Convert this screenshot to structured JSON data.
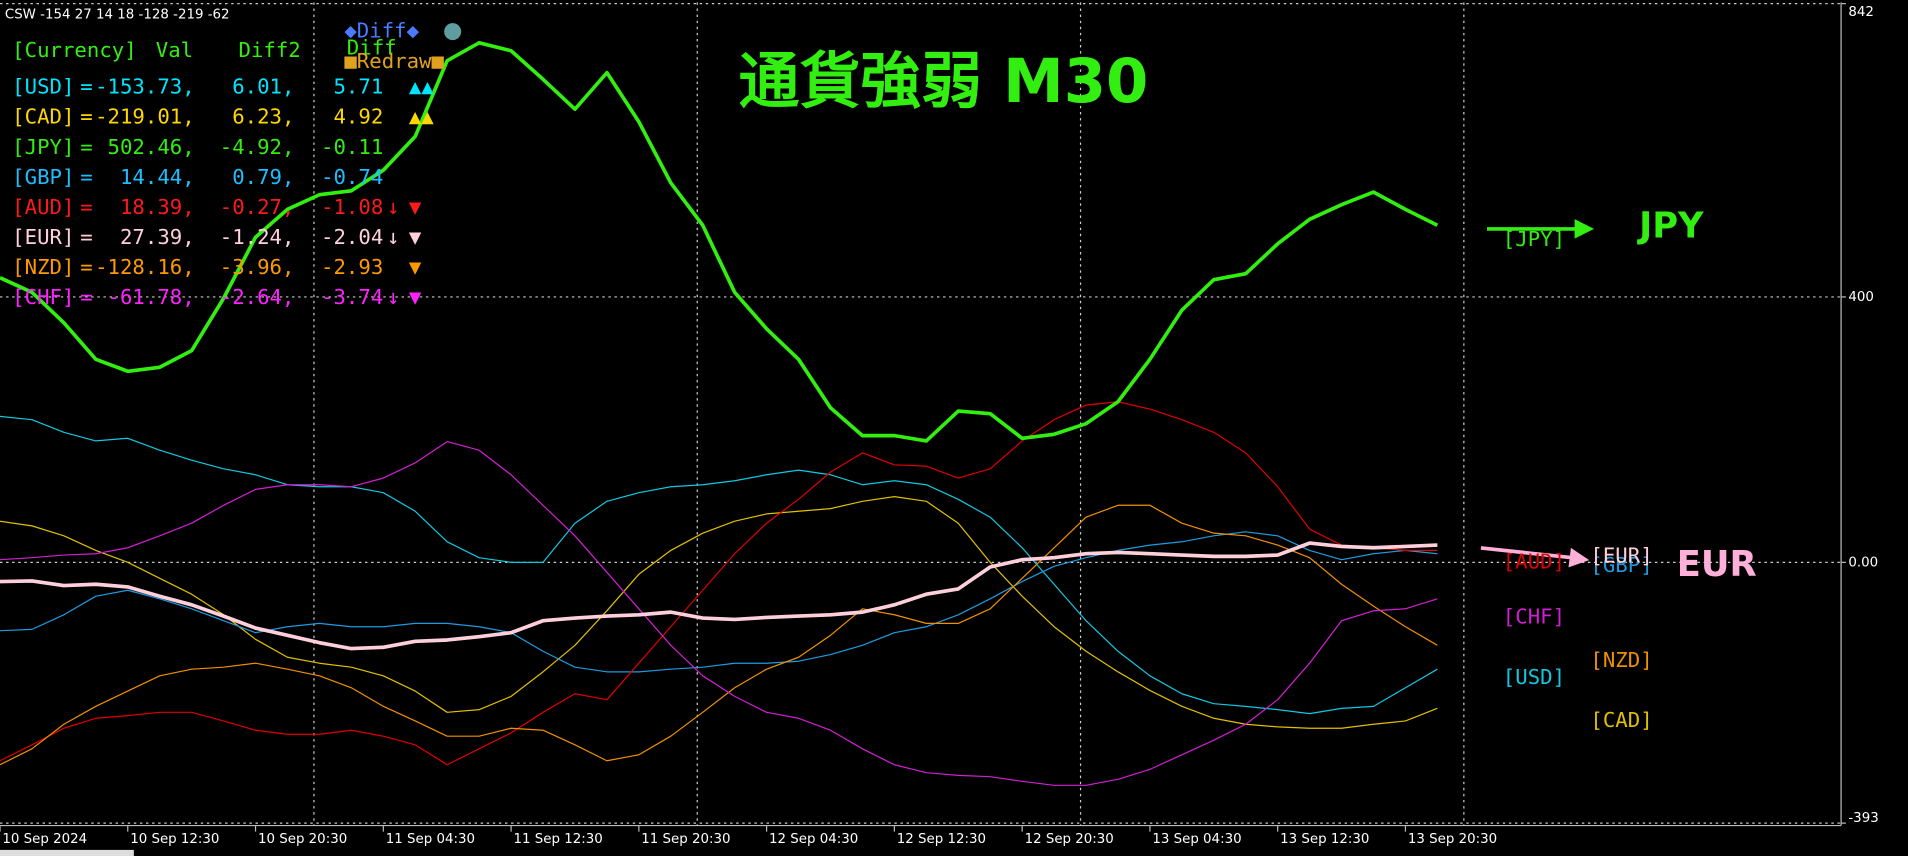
{
  "header": "CSW -154 27 14 18 -128 -219 -62",
  "buttons": [
    {
      "text": "◆Diff◆",
      "color": "#4a7bff"
    },
    {
      "text": "■Redraw■",
      "color": "#e0a020"
    }
  ],
  "panel": {
    "columns": [
      {
        "text": "[Currency]",
        "color": "#33ee11"
      },
      {
        "text": "Val",
        "color": "#33ee11"
      },
      {
        "text": "Diff2",
        "color": "#33ee11"
      },
      {
        "text": "Diff",
        "color": "#33ee11"
      }
    ],
    "rows": [
      {
        "currency": "[USD]",
        "eq": "=",
        "val": "-153.73,",
        "diff2": "6.01,",
        "diff": "5.71",
        "marks": "▲▲",
        "color": "#00e5ff"
      },
      {
        "currency": "[CAD]",
        "eq": "=",
        "val": "-219.01,",
        "diff2": "6.23,",
        "diff": "4.92",
        "marks": "▲▲",
        "color": "#ffd700"
      },
      {
        "currency": "[JPY]",
        "eq": "=",
        "val": "502.46,",
        "diff2": "-4.92,",
        "diff": "-0.11",
        "color": "#33ee11"
      },
      {
        "currency": "[GBP]",
        "eq": "=",
        "val": "14.44,",
        "diff2": "0.79,",
        "diff": "-0.74",
        "color": "#1ebfff"
      },
      {
        "currency": "[AUD]",
        "eq": "=",
        "val": "18.39,",
        "diff2": "-0.27,",
        "diff": "-1.08",
        "arrow": "↓",
        "marks": "▼",
        "color": "#ff1a1a"
      },
      {
        "currency": "[EUR]",
        "eq": "=",
        "val": "27.39,",
        "diff2": "-1.24,",
        "diff": "-2.04",
        "arrow": "↓",
        "marks": "▼",
        "color": "#ffd0dc"
      },
      {
        "currency": "[NZD]",
        "eq": "=",
        "val": "-128.16,",
        "diff2": "-3.96,",
        "diff": "-2.93",
        "marks": "▼",
        "color": "#ff9900"
      },
      {
        "currency": "[CHF]",
        "eq": "=",
        "val": "-61.78,",
        "diff2": "-2.64,",
        "diff": "-3.74",
        "arrow": "↓",
        "marks": "▼",
        "color": "#ff22ff"
      }
    ]
  },
  "chart_data": {
    "type": "line",
    "title": "通貨強弱 M30",
    "title_color": "#33ee11",
    "categories": [
      "10 Sep 2024",
      null,
      null,
      null,
      "10 Sep 12:30",
      null,
      null,
      null,
      "10 Sep 20:30",
      null,
      null,
      null,
      "11 Sep 04:30",
      null,
      null,
      null,
      "11 Sep 12:30",
      null,
      null,
      null,
      "11 Sep 20:30",
      null,
      null,
      null,
      "12 Sep 04:30",
      null,
      null,
      null,
      "12 Sep 12:30",
      null,
      null,
      null,
      "12 Sep 20:30",
      null,
      null,
      null,
      "13 Sep 04:30",
      null,
      null,
      null,
      "13 Sep 12:30",
      null,
      null,
      null,
      "13 Sep 20:30",
      null
    ],
    "ylim": [
      -393,
      842
    ],
    "yticks": [
      -393,
      {
        "value": 0,
        "label": "0.00"
      },
      400,
      842
    ],
    "grid": true,
    "series": [
      {
        "name": "[USD]",
        "color": "#12c8e0",
        "width": 1,
        "values": [
          220,
          215,
          196,
          183,
          187,
          169,
          154,
          141,
          132,
          117,
          114,
          114,
          105,
          77,
          31,
          7,
          0,
          0,
          59,
          92,
          105,
          114,
          117,
          123,
          132,
          139,
          132,
          117,
          123,
          117,
          95,
          68,
          22,
          -33,
          -88,
          -134,
          -171,
          -198,
          -213,
          -217,
          -222,
          -228,
          -220,
          -217,
          -189,
          -161
        ]
      },
      {
        "name": "[CAD]",
        "color": "#e0c000",
        "width": 1,
        "values": [
          62,
          55,
          40,
          18,
          0,
          -24,
          -48,
          -79,
          -116,
          -143,
          -152,
          -158,
          -171,
          -194,
          -226,
          -222,
          -202,
          -165,
          -125,
          -73,
          -18,
          18,
          44,
          62,
          73,
          77,
          81,
          92,
          99,
          92,
          59,
          0,
          -51,
          -97,
          -134,
          -165,
          -193,
          -217,
          -235,
          -244,
          -248,
          -250,
          -250,
          -244,
          -239,
          -220
        ]
      },
      {
        "name": "[JPY]",
        "color": "#33ee11",
        "width": 3,
        "values": [
          429,
          407,
          361,
          306,
          288,
          294,
          319,
          398,
          490,
          532,
          554,
          560,
          591,
          642,
          756,
          783,
          771,
          728,
          683,
          738,
          664,
          572,
          508,
          407,
          352,
          306,
          233,
          191,
          191,
          183,
          228,
          224,
          187,
          193,
          209,
          242,
          306,
          380,
          426,
          435,
          480,
          517,
          539,
          558,
          532,
          508
        ]
      },
      {
        "name": "[GBP]",
        "color": "#1e9be0",
        "width": 1,
        "values": [
          -103,
          -101,
          -79,
          -51,
          -42,
          -55,
          -70,
          -88,
          -106,
          -97,
          -92,
          -97,
          -97,
          -92,
          -92,
          -97,
          -106,
          -134,
          -158,
          -165,
          -165,
          -161,
          -158,
          -152,
          -152,
          -149,
          -139,
          -125,
          -106,
          -97,
          -79,
          -55,
          -29,
          -6,
          7,
          18,
          26,
          31,
          40,
          46,
          40,
          18,
          4,
          13,
          18,
          13
        ]
      },
      {
        "name": "[AUD]",
        "color": "#e00000",
        "width": 1,
        "values": [
          -299,
          -275,
          -250,
          -235,
          -231,
          -226,
          -226,
          -239,
          -253,
          -259,
          -259,
          -253,
          -262,
          -275,
          -305,
          -281,
          -257,
          -226,
          -198,
          -207,
          -152,
          -97,
          -42,
          13,
          59,
          95,
          136,
          165,
          147,
          145,
          127,
          141,
          183,
          215,
          237,
          242,
          231,
          215,
          196,
          165,
          114,
          50,
          26,
          22,
          18,
          18
        ]
      },
      {
        "name": "[EUR]",
        "color": "#ffd0dc",
        "width": 3,
        "values": [
          -29,
          -28,
          -35,
          -33,
          -37,
          -51,
          -64,
          -81,
          -99,
          -110,
          -121,
          -130,
          -128,
          -119,
          -117,
          -112,
          -106,
          -88,
          -84,
          -81,
          -79,
          -75,
          -84,
          -86,
          -83,
          -81,
          -79,
          -75,
          -64,
          -48,
          -40,
          -7,
          4,
          7,
          13,
          15,
          13,
          11,
          9,
          9,
          11,
          29,
          24,
          22,
          24,
          26
        ]
      },
      {
        "name": "[NZD]",
        "color": "#f09000",
        "width": 1,
        "values": [
          -305,
          -281,
          -244,
          -217,
          -194,
          -171,
          -161,
          -158,
          -152,
          -161,
          -171,
          -189,
          -217,
          -239,
          -262,
          -262,
          -250,
          -253,
          -275,
          -299,
          -290,
          -262,
          -226,
          -189,
          -161,
          -143,
          -110,
          -70,
          -79,
          -92,
          -92,
          -70,
          -24,
          22,
          68,
          86,
          86,
          59,
          44,
          40,
          26,
          7,
          -33,
          -66,
          -97,
          -125
        ]
      },
      {
        "name": "[CHF]",
        "color": "#d020d0",
        "width": 1,
        "values": [
          4,
          7,
          11,
          13,
          22,
          40,
          59,
          86,
          110,
          117,
          117,
          114,
          127,
          150,
          182,
          169,
          132,
          86,
          40,
          -15,
          -70,
          -125,
          -171,
          -202,
          -226,
          -235,
          -253,
          -281,
          -305,
          -317,
          -321,
          -323,
          -330,
          -336,
          -336,
          -327,
          -312,
          -290,
          -268,
          -244,
          -207,
          -152,
          -88,
          -73,
          -70,
          -55
        ]
      }
    ],
    "annotations": [
      {
        "text": "JPY",
        "color": "#33ee11"
      },
      {
        "text": "EUR",
        "color": "#ffb0d8"
      }
    ]
  }
}
